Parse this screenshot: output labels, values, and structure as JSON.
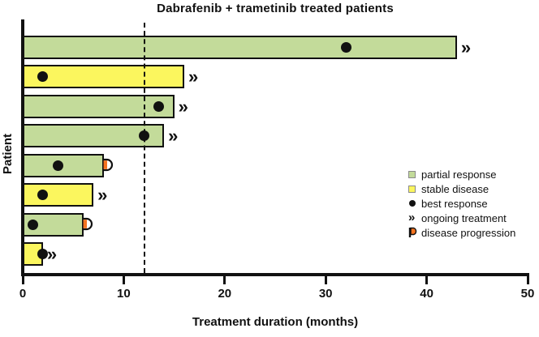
{
  "title": "Dabrafenib + trametinib treated patients",
  "axes": {
    "x_label": "Treatment duration (months)",
    "y_label": "Patient",
    "x_ticks": [
      0,
      10,
      20,
      30,
      40,
      50
    ],
    "x_min": 0,
    "x_max": 50
  },
  "reference_line": {
    "x_months": 12,
    "style": "dashed"
  },
  "colors": {
    "partial_response": "#c3db9a",
    "stable_disease": "#fbf65e",
    "progression_flag": "#f4731f",
    "outline": "#111111"
  },
  "legend": {
    "items": [
      {
        "marker": "green-square",
        "label": "partial response"
      },
      {
        "marker": "yellow-square",
        "label": "stable disease"
      },
      {
        "marker": "black-dot",
        "label": "best response"
      },
      {
        "marker": "chevrons",
        "label": "ongoing treatment"
      },
      {
        "marker": "flag",
        "label": "disease progression"
      }
    ]
  },
  "chart_data": {
    "type": "bar",
    "orientation": "horizontal",
    "title": "Dabrafenib + trametinib treated patients",
    "xlabel": "Treatment duration (months)",
    "ylabel": "Patient",
    "xlim": [
      0,
      50
    ],
    "x_ticks": [
      0,
      10,
      20,
      30,
      40,
      50
    ],
    "reference_line_x": 12,
    "grid": false,
    "legend_position": "right-middle",
    "patients": [
      {
        "row": 1,
        "response": "partial response",
        "duration_months": 43,
        "best_response_month": 32,
        "ongoing": true,
        "progression": false
      },
      {
        "row": 2,
        "response": "stable disease",
        "duration_months": 16,
        "best_response_month": 2,
        "ongoing": true,
        "progression": false
      },
      {
        "row": 3,
        "response": "partial response",
        "duration_months": 15,
        "best_response_month": 13.5,
        "ongoing": true,
        "progression": false
      },
      {
        "row": 4,
        "response": "partial response",
        "duration_months": 14,
        "best_response_month": 12,
        "ongoing": true,
        "progression": false
      },
      {
        "row": 5,
        "response": "partial response",
        "duration_months": 8,
        "best_response_month": 3.5,
        "ongoing": false,
        "progression": true
      },
      {
        "row": 6,
        "response": "stable disease",
        "duration_months": 7,
        "best_response_month": 2,
        "ongoing": true,
        "progression": false
      },
      {
        "row": 7,
        "response": "partial response",
        "duration_months": 6,
        "best_response_month": 1,
        "ongoing": false,
        "progression": true
      },
      {
        "row": 8,
        "response": "stable disease",
        "duration_months": 2,
        "best_response_month": 2,
        "ongoing": true,
        "progression": false
      }
    ],
    "ongoing_symbol": "»"
  }
}
